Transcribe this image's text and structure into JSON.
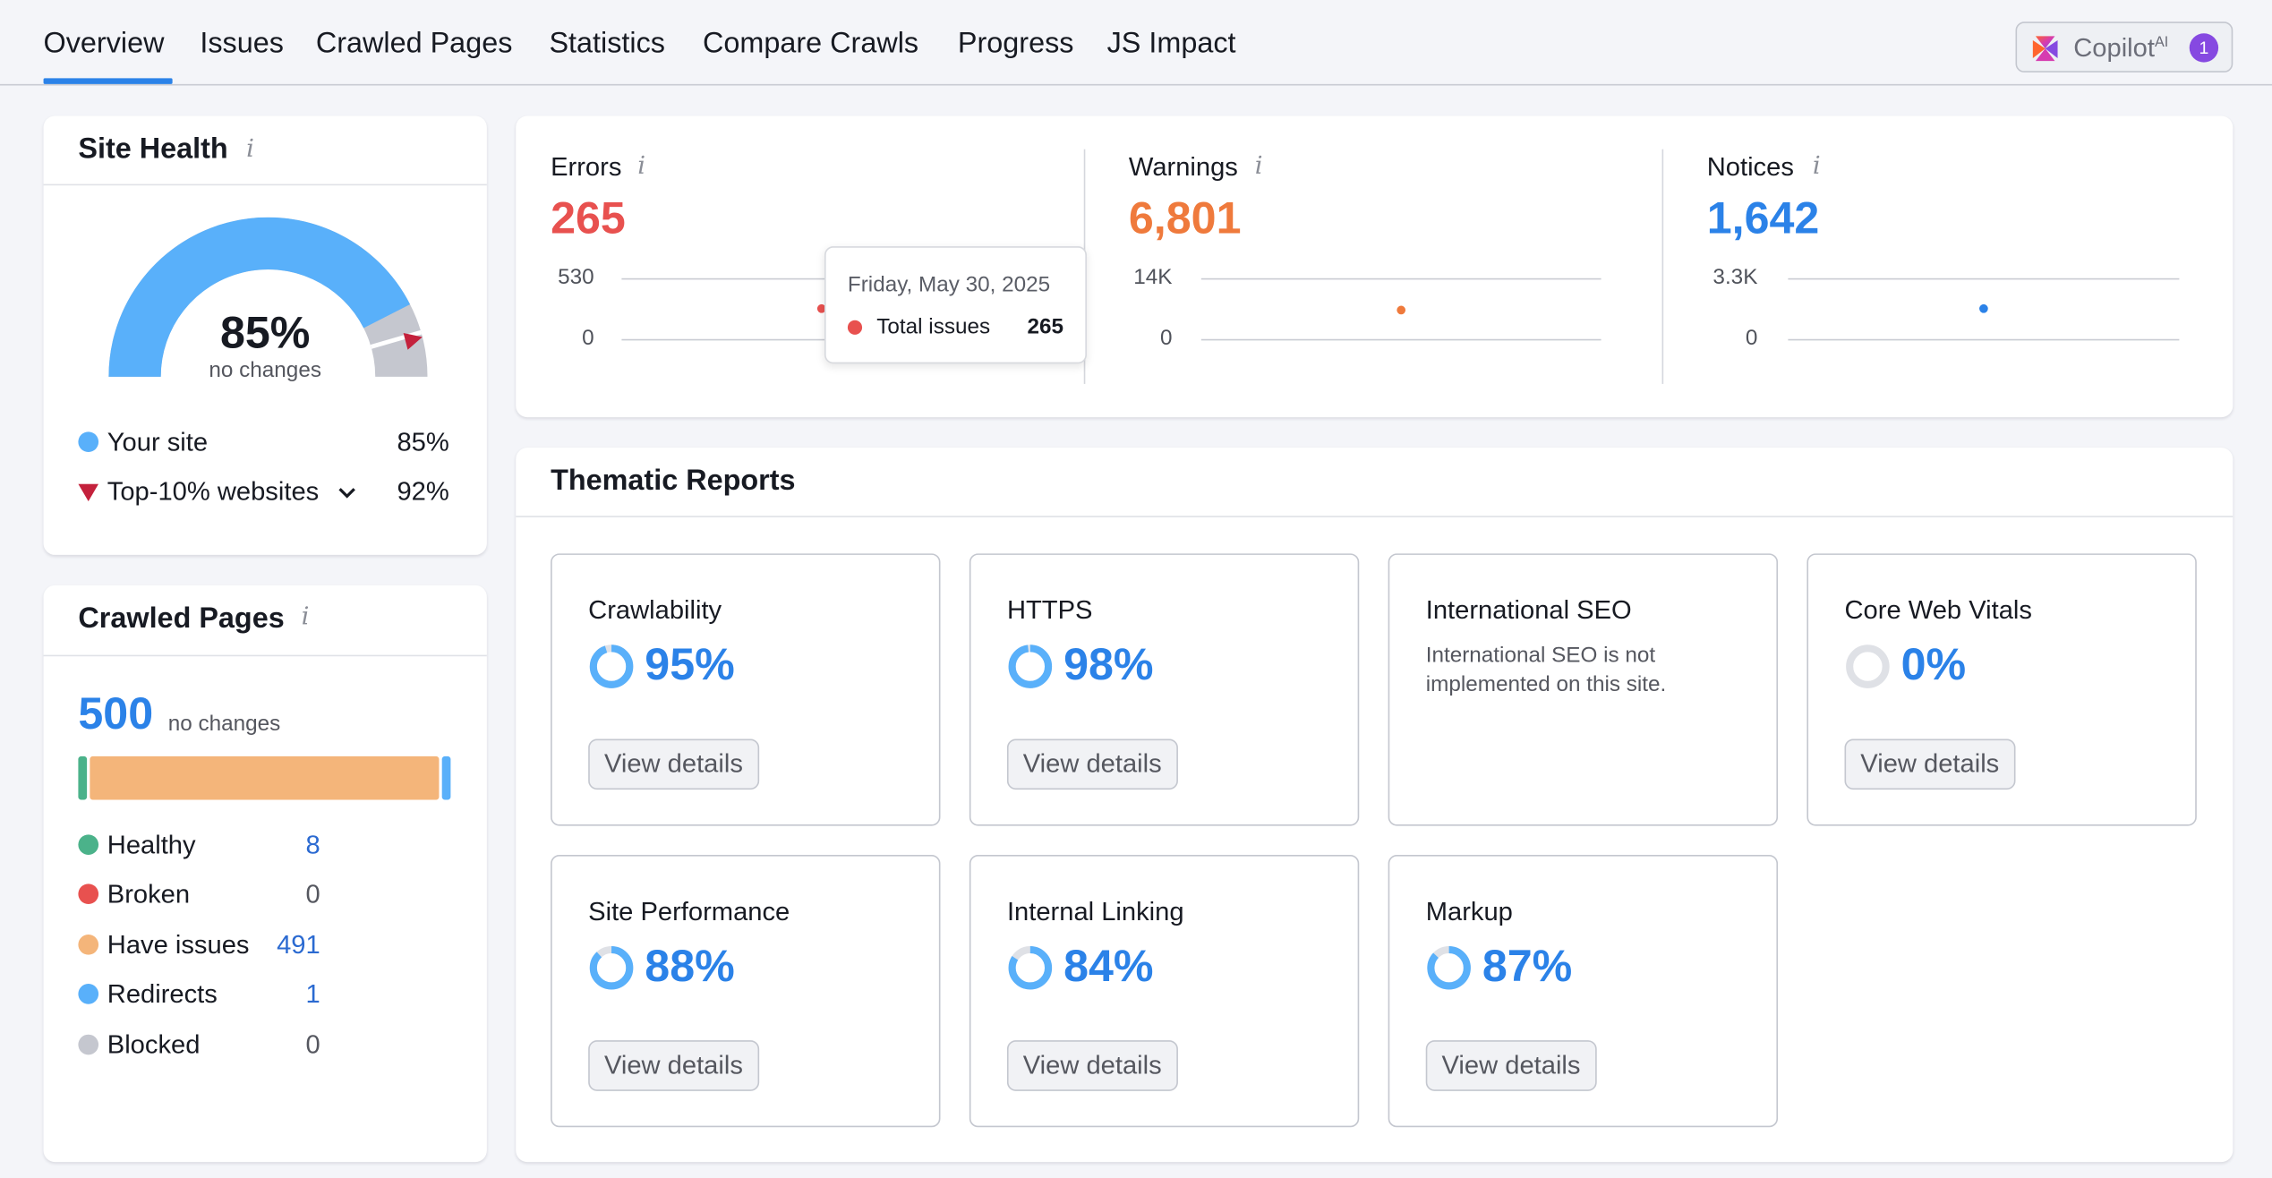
{
  "nav": {
    "tabs": [
      {
        "label": "Overview"
      },
      {
        "label": "Issues"
      },
      {
        "label": "Crawled Pages"
      },
      {
        "label": "Statistics"
      },
      {
        "label": "Compare Crawls"
      },
      {
        "label": "Progress"
      },
      {
        "label": "JS Impact"
      }
    ],
    "active_tab": "Overview",
    "copilot": {
      "label": "Copilot",
      "sup": "AI",
      "badge": "1",
      "icon": "copilot-logo-icon"
    }
  },
  "site_health": {
    "title": "Site Health",
    "score": "85%",
    "score_fraction": 0.85,
    "change": "no changes",
    "top10_marker_fraction": 0.92,
    "legend": [
      {
        "label": "Your site",
        "value": "85%",
        "color": "#59b0fa",
        "marker": "circle"
      },
      {
        "label": "Top-10% websites",
        "value": "92%",
        "color": "#c4213c",
        "marker": "triangle",
        "has_dropdown": true
      }
    ]
  },
  "crawled_pages": {
    "title": "Crawled Pages",
    "count": "500",
    "change": "no changes",
    "rows": [
      {
        "label": "Healthy",
        "value": "8",
        "color": "#4bb28a",
        "link": true,
        "count": 8
      },
      {
        "label": "Broken",
        "value": "0",
        "color": "#e8514f",
        "link": false,
        "count": 0
      },
      {
        "label": "Have issues",
        "value": "491",
        "color": "#f4b57a",
        "link": true,
        "count": 491
      },
      {
        "label": "Redirects",
        "value": "1",
        "color": "#59b0fa",
        "link": true,
        "count": 1
      },
      {
        "label": "Blocked",
        "value": "0",
        "color": "#c5c7cf",
        "link": false,
        "count": 0
      }
    ]
  },
  "stats": {
    "errors": {
      "label": "Errors",
      "value": "265",
      "color": "#e8514f",
      "ymax_label": "530",
      "ymin_label": "0",
      "y_max": 530,
      "point": 265
    },
    "warnings": {
      "label": "Warnings",
      "value": "6,801",
      "color": "#ef7a3c",
      "ymax_label": "14K",
      "ymin_label": "0",
      "y_max": 14000,
      "point": 6801
    },
    "notices": {
      "label": "Notices",
      "value": "1,642",
      "color": "#2b82e8",
      "ymax_label": "3.3K",
      "ymin_label": "0",
      "y_max": 3300,
      "point": 1642
    },
    "tooltip": {
      "date": "Friday, May 30, 2025",
      "label": "Total issues",
      "value": "265"
    }
  },
  "thematic": {
    "title": "Thematic Reports",
    "view_label": "View details",
    "reports": [
      {
        "name": "Crawlability",
        "pct": "95%",
        "fraction": 0.95
      },
      {
        "name": "HTTPS",
        "pct": "98%",
        "fraction": 0.98
      },
      {
        "name": "International SEO",
        "note": "International SEO is not implemented on this site."
      },
      {
        "name": "Core Web Vitals",
        "pct": "0%",
        "fraction": 0
      },
      {
        "name": "Site Performance",
        "pct": "88%",
        "fraction": 0.88
      },
      {
        "name": "Internal Linking",
        "pct": "84%",
        "fraction": 0.84
      },
      {
        "name": "Markup",
        "pct": "87%",
        "fraction": 0.87
      }
    ]
  }
}
